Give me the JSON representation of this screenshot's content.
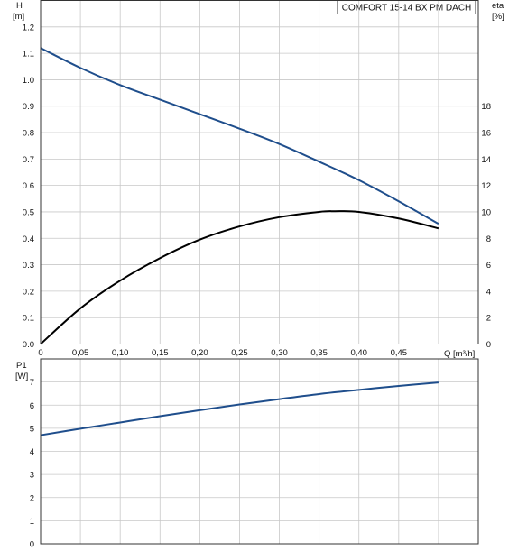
{
  "chart_data": [
    {
      "type": "line",
      "title": "COMFORT 15-14 BX PM DACH",
      "xlabel": "Q [m³/h]",
      "ylabel_left": [
        "H",
        "[m]"
      ],
      "ylabel_right": [
        "eta",
        "[%]"
      ],
      "xlim": [
        0,
        0.55
      ],
      "ylim_left": [
        0,
        1.3
      ],
      "ylim_right": [
        0,
        26
      ],
      "x_ticks": [
        "0",
        "0,05",
        "0,10",
        "0,15",
        "0,20",
        "0,25",
        "0,30",
        "0,35",
        "0,40",
        "0,45"
      ],
      "y_ticks_left": [
        "0.0",
        "0.1",
        "0.2",
        "0.3",
        "0.4",
        "0.5",
        "0.6",
        "0.7",
        "0.8",
        "0.9",
        "1.0",
        "1.1",
        "1.2"
      ],
      "y_ticks_right": [
        "0",
        "2",
        "4",
        "6",
        "8",
        "10",
        "12",
        "14",
        "16",
        "18"
      ],
      "grid": true,
      "series": [
        {
          "axis": "left",
          "color": "#1f4e8c",
          "x": [
            0,
            0.05,
            0.1,
            0.15,
            0.2,
            0.25,
            0.3,
            0.35,
            0.4,
            0.45,
            0.5
          ],
          "y": [
            1.12,
            1.045,
            0.98,
            0.925,
            0.87,
            0.815,
            0.757,
            0.69,
            0.62,
            0.54,
            0.455
          ]
        },
        {
          "axis": "right",
          "color": "#000000",
          "x": [
            0,
            0.05,
            0.1,
            0.15,
            0.2,
            0.25,
            0.3,
            0.35,
            0.37,
            0.4,
            0.45,
            0.5
          ],
          "y": [
            0,
            2.7,
            4.8,
            6.5,
            7.9,
            8.9,
            9.6,
            10.0,
            10.05,
            10.0,
            9.5,
            8.75
          ]
        }
      ]
    },
    {
      "type": "line",
      "xlabel": "",
      "ylabel": [
        "P1",
        "[W]"
      ],
      "xlim": [
        0,
        0.55
      ],
      "ylim": [
        0,
        8
      ],
      "y_ticks": [
        "0",
        "1",
        "2",
        "3",
        "4",
        "5",
        "6",
        "7"
      ],
      "grid": true,
      "series": [
        {
          "color": "#1f4e8c",
          "x": [
            0,
            0.05,
            0.1,
            0.15,
            0.2,
            0.25,
            0.3,
            0.35,
            0.4,
            0.45,
            0.5
          ],
          "y": [
            4.7,
            4.98,
            5.25,
            5.52,
            5.78,
            6.03,
            6.26,
            6.48,
            6.66,
            6.83,
            6.98
          ]
        }
      ]
    }
  ]
}
